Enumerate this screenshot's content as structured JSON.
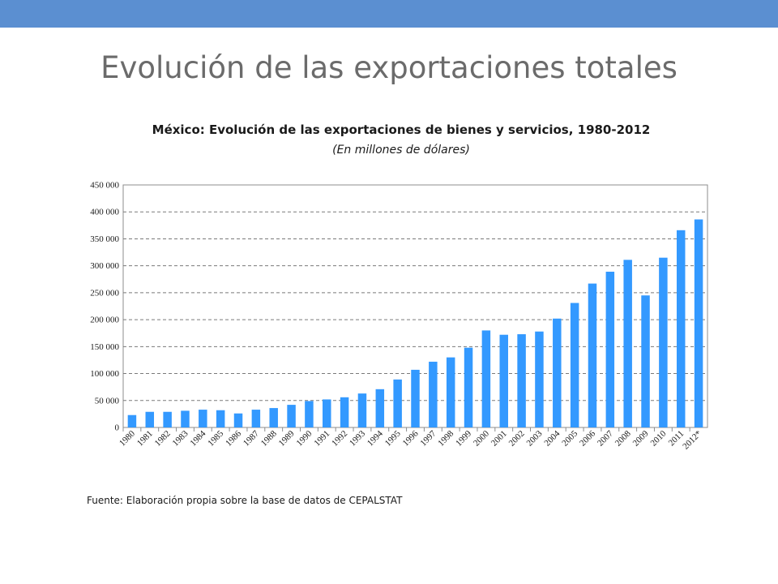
{
  "slide": {
    "title": "Evolución de las exportaciones totales",
    "source": "Fuente: Elaboración propia sobre la base de datos de CEPALSTAT",
    "accent_color": "#5b8fd1"
  },
  "chart_data": {
    "type": "bar",
    "title": "México: Evolución de las exportaciones de bienes y servicios, 1980-2012",
    "subtitle": "(En millones de dólares)",
    "xlabel": "",
    "ylabel": "",
    "ylim": [
      0,
      450000
    ],
    "yticks": [
      0,
      50000,
      100000,
      150000,
      200000,
      250000,
      300000,
      350000,
      400000,
      450000
    ],
    "ytick_labels": [
      "0",
      "50 000",
      "100 000",
      "150 000",
      "200 000",
      "250 000",
      "300 000",
      "350 000",
      "400 000",
      "450 000"
    ],
    "grid": true,
    "legend": "none",
    "bar_color": "#3399ff",
    "categories": [
      "1980",
      "1981",
      "1982",
      "1983",
      "1984",
      "1985",
      "1986",
      "1987",
      "1988",
      "1989",
      "1990",
      "1991",
      "1992",
      "1993",
      "1994",
      "1995",
      "1996",
      "1997",
      "1998",
      "1999",
      "2000",
      "2001",
      "2002",
      "2003",
      "2004",
      "2005",
      "2006",
      "2007",
      "2008",
      "2009",
      "2010",
      "2011",
      "2012*"
    ],
    "values": [
      23000,
      29000,
      29000,
      31000,
      33000,
      32000,
      26000,
      33000,
      36000,
      42000,
      49000,
      52000,
      56000,
      63000,
      71000,
      89000,
      107000,
      122000,
      130000,
      148000,
      180000,
      172000,
      173000,
      178000,
      202000,
      231000,
      267000,
      289000,
      311000,
      245000,
      315000,
      366000,
      386000
    ]
  }
}
